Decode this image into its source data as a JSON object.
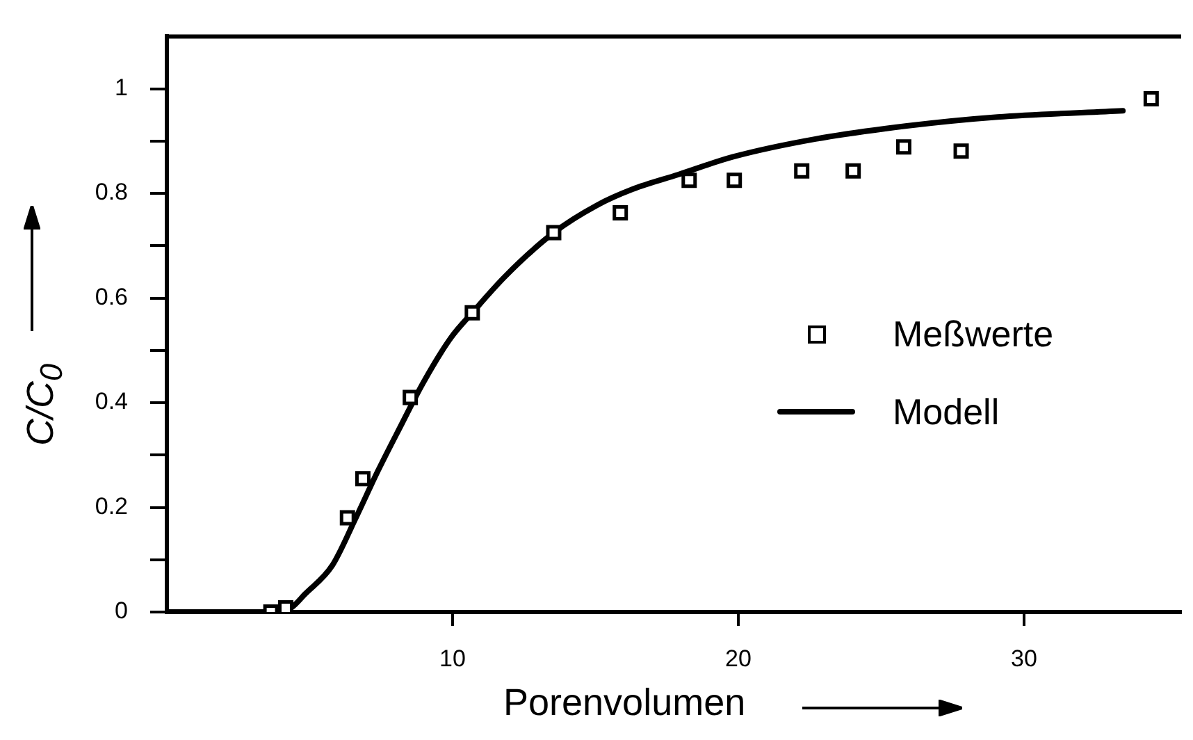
{
  "chart_data": {
    "type": "scatter",
    "xlabel": "Porenvolumen",
    "ylabel": "C/C$_{0}$",
    "xlim": [
      0,
      35.5
    ],
    "ylim": [
      0,
      1.1
    ],
    "xticks": [
      10,
      20,
      30
    ],
    "yticks": [
      0,
      {
        "value": 0.1,
        "label": null
      },
      0.2,
      {
        "value": 0.3,
        "label": null
      },
      0.4,
      {
        "value": 0.5,
        "label": null
      },
      0.6,
      {
        "value": 0.7,
        "label": null
      },
      0.8,
      {
        "value": 0.9,
        "label": null
      },
      1
    ],
    "grid": false,
    "legend": "right",
    "series": [
      {
        "name": "Meßwerte",
        "marker": "square",
        "color": "#000000",
        "x": [
          3.64,
          4.16,
          6.32,
          6.86,
          8.52,
          10.69,
          13.54,
          15.87,
          18.28,
          19.86,
          22.22,
          24.02,
          25.79,
          27.8,
          34.45
        ],
        "values": [
          0,
          0.008,
          0.18,
          0.255,
          0.41,
          0.572,
          0.725,
          0.763,
          0.825,
          0.825,
          0.843,
          0.843,
          0.889,
          0.881,
          0.981
        ]
      },
      {
        "name": "Modell",
        "type": "line",
        "color": "#000000",
        "line_style": "solid",
        "x": [
          0,
          3.9,
          4.35,
          4.83,
          5.79,
          6.59,
          7.39,
          8.18,
          8.98,
          9.94,
          10.69,
          11.85,
          13.54,
          15.04,
          16.3,
          17.9,
          19.82,
          22.7,
          25.9,
          29.07,
          33.46
        ],
        "values": [
          0,
          0,
          0.008,
          0.034,
          0.089,
          0.177,
          0.27,
          0.355,
          0.439,
          0.524,
          0.572,
          0.642,
          0.725,
          0.777,
          0.808,
          0.836,
          0.87,
          0.904,
          0.929,
          0.946,
          0.958
        ]
      }
    ]
  }
}
